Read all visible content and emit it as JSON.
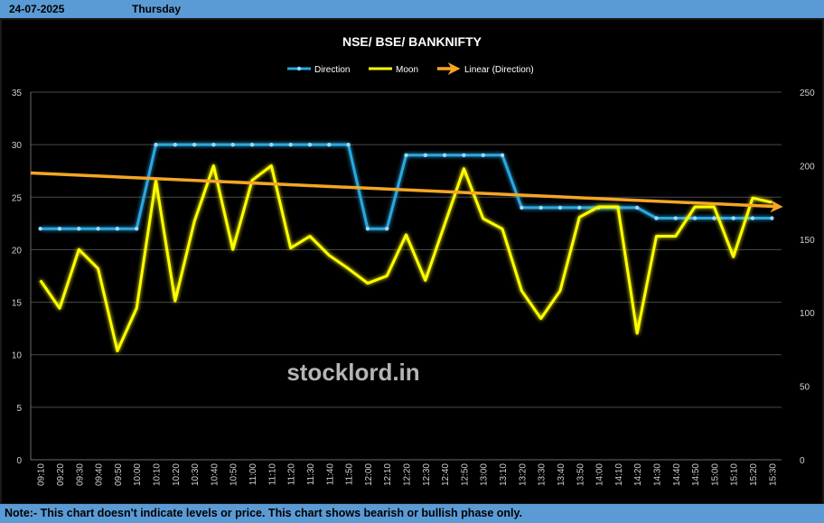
{
  "header": {
    "date": "24-07-2025",
    "day": "Thursday"
  },
  "footer": {
    "note": "Note:- This chart doesn't indicate levels or price. This chart shows bearish or bullish phase only."
  },
  "watermark": "stocklord.in",
  "colors": {
    "direction": "#29a8e0",
    "moon": "#ffff00",
    "trend": "#f5a623",
    "background": "#000000",
    "banner": "#5b9bd5"
  },
  "chart_data": {
    "type": "line",
    "title": "NSE/ BSE/ BANKNIFTY",
    "legend": [
      "Direction",
      "Moon",
      "Linear (Direction)"
    ],
    "legend_position": "top",
    "grid": "horizontal",
    "categories": [
      "09:10",
      "09:20",
      "09:30",
      "09:40",
      "09:50",
      "10:00",
      "10:10",
      "10:20",
      "10:30",
      "10:40",
      "10:50",
      "11:00",
      "11:10",
      "11:20",
      "11:30",
      "11:40",
      "11:50",
      "12:00",
      "12:10",
      "12:20",
      "12:30",
      "12:40",
      "12:50",
      "13:00",
      "13:10",
      "13:20",
      "13:30",
      "13:40",
      "13:50",
      "14:00",
      "14:10",
      "14:20",
      "14:30",
      "14:40",
      "14:50",
      "15:00",
      "15:10",
      "15:20",
      "15:30"
    ],
    "y_left": {
      "min": 0,
      "max": 35,
      "ticks": [
        0,
        5,
        10,
        15,
        20,
        25,
        30,
        35
      ]
    },
    "y_right": {
      "min": 0,
      "max": 250,
      "ticks": [
        0,
        50,
        100,
        150,
        200,
        250
      ]
    },
    "series": [
      {
        "name": "Direction",
        "axis": "left",
        "values": [
          22,
          22,
          22,
          22,
          22,
          22,
          30,
          30,
          30,
          30,
          30,
          30,
          30,
          30,
          30,
          30,
          30,
          22,
          22,
          29,
          29,
          29,
          29,
          29,
          29,
          24,
          24,
          24,
          24,
          24,
          24,
          24,
          23,
          23,
          23,
          23,
          23,
          23,
          23
        ]
      },
      {
        "name": "Moon",
        "axis": "right",
        "values": [
          122,
          103,
          143,
          130,
          74,
          103,
          190,
          108,
          162,
          200,
          143,
          190,
          200,
          144,
          152,
          139,
          130,
          120,
          125,
          153,
          122,
          160,
          198,
          164,
          157,
          115,
          96,
          115,
          165,
          172,
          172,
          86,
          152,
          152,
          172,
          172,
          138,
          178,
          175
        ]
      },
      {
        "name": "Linear (Direction)",
        "axis": "left",
        "trend": true,
        "start": 27.3,
        "end": 24.1
      }
    ]
  }
}
